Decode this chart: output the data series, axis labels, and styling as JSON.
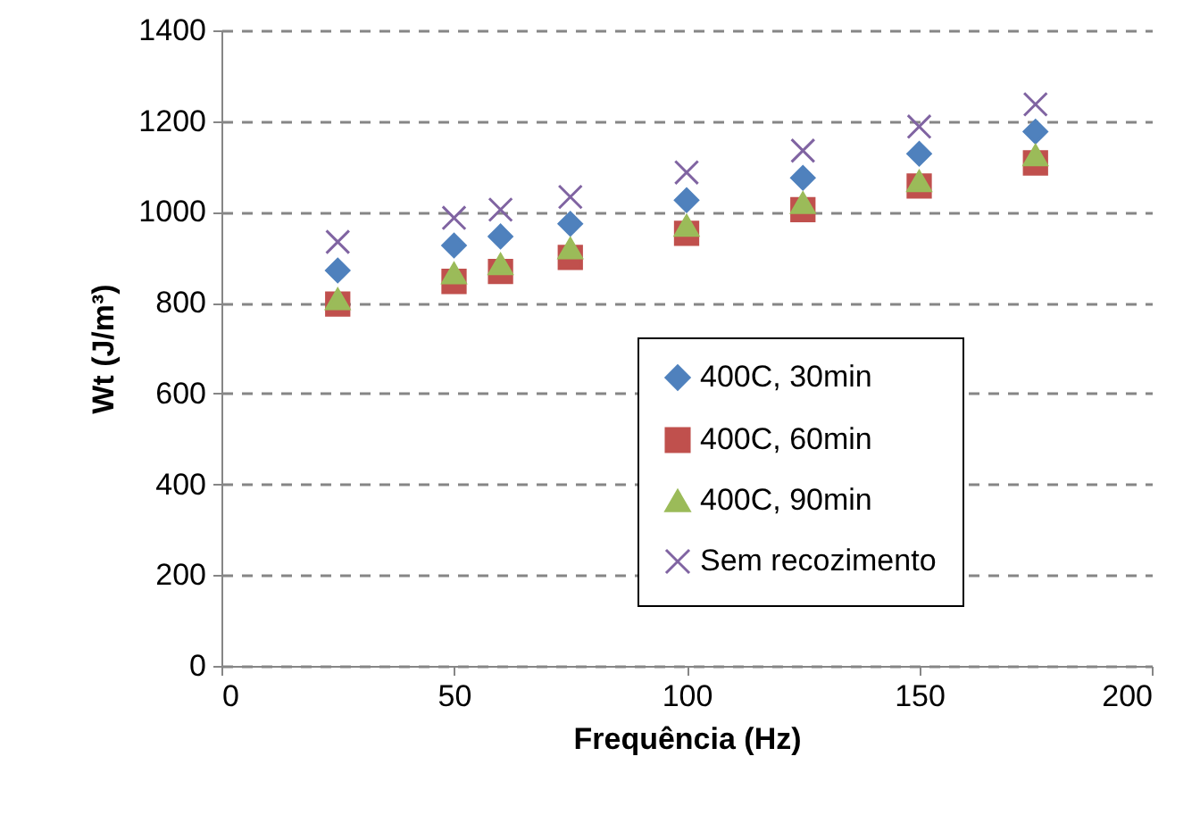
{
  "chart_data": {
    "type": "scatter",
    "xlabel": "Frequência (Hz)",
    "ylabel": "Wt (J/m³)",
    "x": [
      25,
      50,
      60,
      75,
      100,
      125,
      150,
      175
    ],
    "series": [
      {
        "name": "400C, 30min",
        "color": "#4f81bd",
        "marker": "diamond",
        "values": [
          871,
          926,
          946,
          974,
          1026,
          1075,
          1128,
          1177
        ]
      },
      {
        "name": "400C, 60min",
        "color": "#c0504d",
        "marker": "square",
        "values": [
          797,
          847,
          869,
          900,
          953,
          1005,
          1057,
          1108
        ]
      },
      {
        "name": "400C, 90min",
        "color": "#9bbb59",
        "marker": "triangle",
        "values": [
          808,
          865,
          885,
          920,
          970,
          1020,
          1068,
          1125
        ]
      },
      {
        "name": "Sem recozimento",
        "color": "#8064a2",
        "marker": "cross",
        "values": [
          934,
          987,
          1005,
          1033,
          1087,
          1135,
          1188,
          1237
        ]
      }
    ],
    "xlim": [
      0,
      200
    ],
    "xticks": [
      0,
      50,
      100,
      150,
      200
    ],
    "ylim": [
      0,
      1400
    ],
    "yticks": [
      0,
      200,
      400,
      600,
      800,
      1000,
      1200,
      1400
    ],
    "grid": "y",
    "legend": "bottom right"
  }
}
